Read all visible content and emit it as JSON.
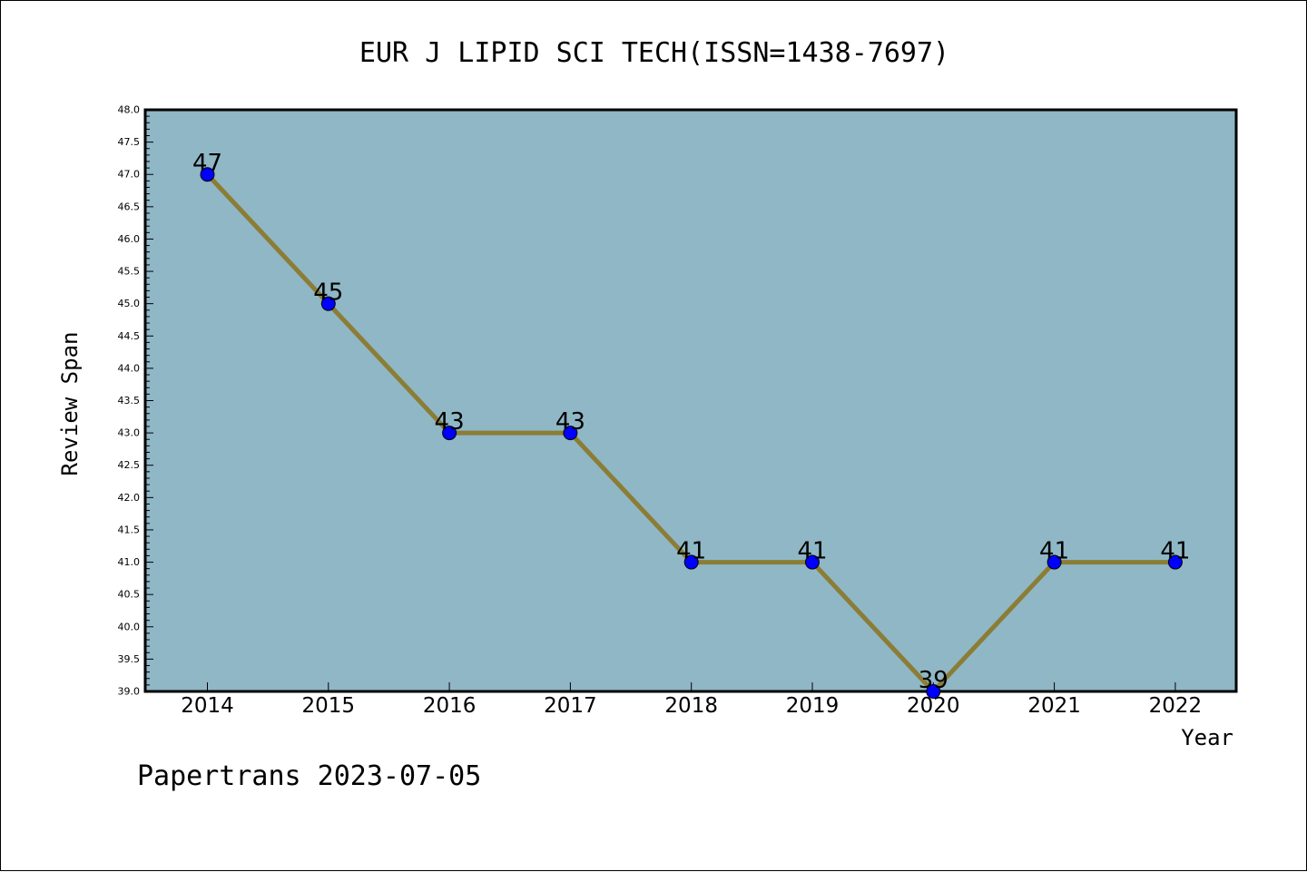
{
  "chart_data": {
    "type": "line",
    "title": "EUR J LIPID SCI TECH(ISSN=1438-7697)",
    "xlabel": "Year",
    "ylabel": "Review Span",
    "categories": [
      "2014",
      "2015",
      "2016",
      "2017",
      "2018",
      "2019",
      "2020",
      "2021",
      "2022"
    ],
    "series": [
      {
        "values": [
          47,
          45,
          43,
          43,
          41,
          41,
          39,
          41,
          41
        ]
      }
    ],
    "data_labels": [
      "47",
      "45",
      "43",
      "43",
      "41",
      "41",
      "39",
      "41",
      "41"
    ],
    "ylim": [
      39.0,
      48.0
    ],
    "yticks": [
      "39.0",
      "39.5",
      "40.0",
      "40.5",
      "41.0",
      "41.5",
      "42.0",
      "42.5",
      "43.0",
      "43.5",
      "44.0",
      "44.5",
      "45.0",
      "45.5",
      "46.0",
      "46.5",
      "47.0",
      "47.5",
      "48.0"
    ],
    "grid": false,
    "legend": "none",
    "colors": {
      "plot_background": "#8fb7c6",
      "line": "#8b7d35",
      "marker": "#0000ff"
    }
  },
  "footer": "Papertrans 2023-07-05"
}
